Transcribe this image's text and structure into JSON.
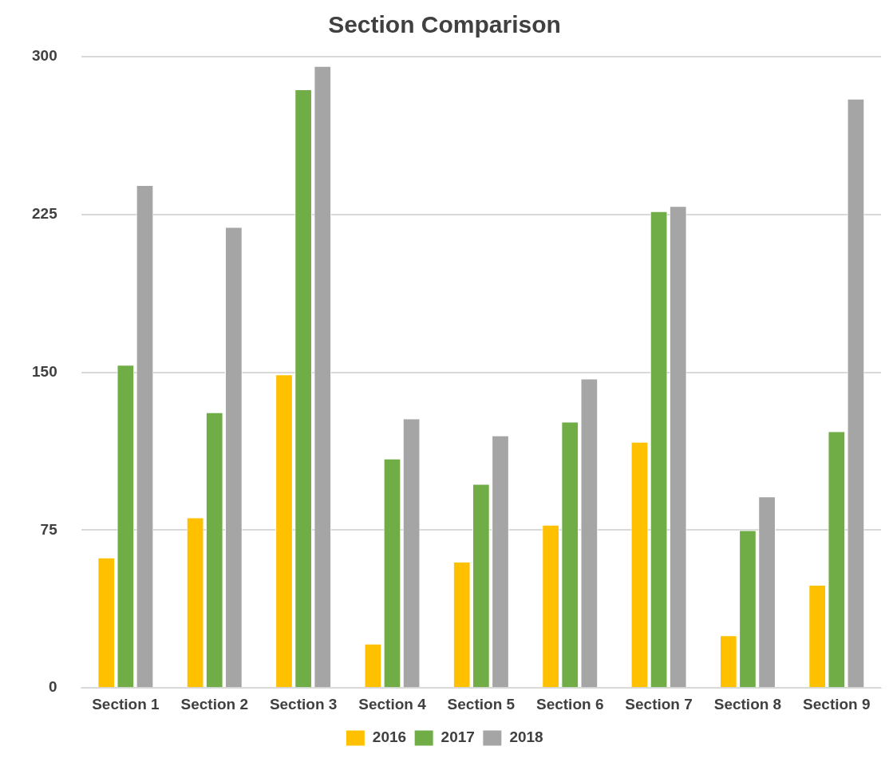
{
  "chart_data": {
    "type": "bar",
    "title": "Section Comparison",
    "categories": [
      "Section 1",
      "Section 2",
      "Section 3",
      "Section 4",
      "Section 5",
      "Section 6",
      "Section 7",
      "Section 8",
      "Section 9"
    ],
    "series": [
      {
        "name": "2016",
        "color": "#ffc000",
        "values": [
          62,
          81,
          149,
          21,
          60,
          77.5,
          117,
          25,
          49
        ]
      },
      {
        "name": "2017",
        "color": "#70ad47",
        "values": [
          153.5,
          131,
          284.5,
          109,
          97,
          126.5,
          226.5,
          75,
          122
        ]
      },
      {
        "name": "2018",
        "color": "#a5a5a5",
        "values": [
          239,
          219,
          295.5,
          128,
          120,
          147,
          229,
          91,
          280
        ]
      }
    ],
    "ylim": [
      0,
      300
    ],
    "yticks": [
      0,
      75,
      150,
      225,
      300
    ],
    "grid": "y",
    "legend": "bottom"
  }
}
